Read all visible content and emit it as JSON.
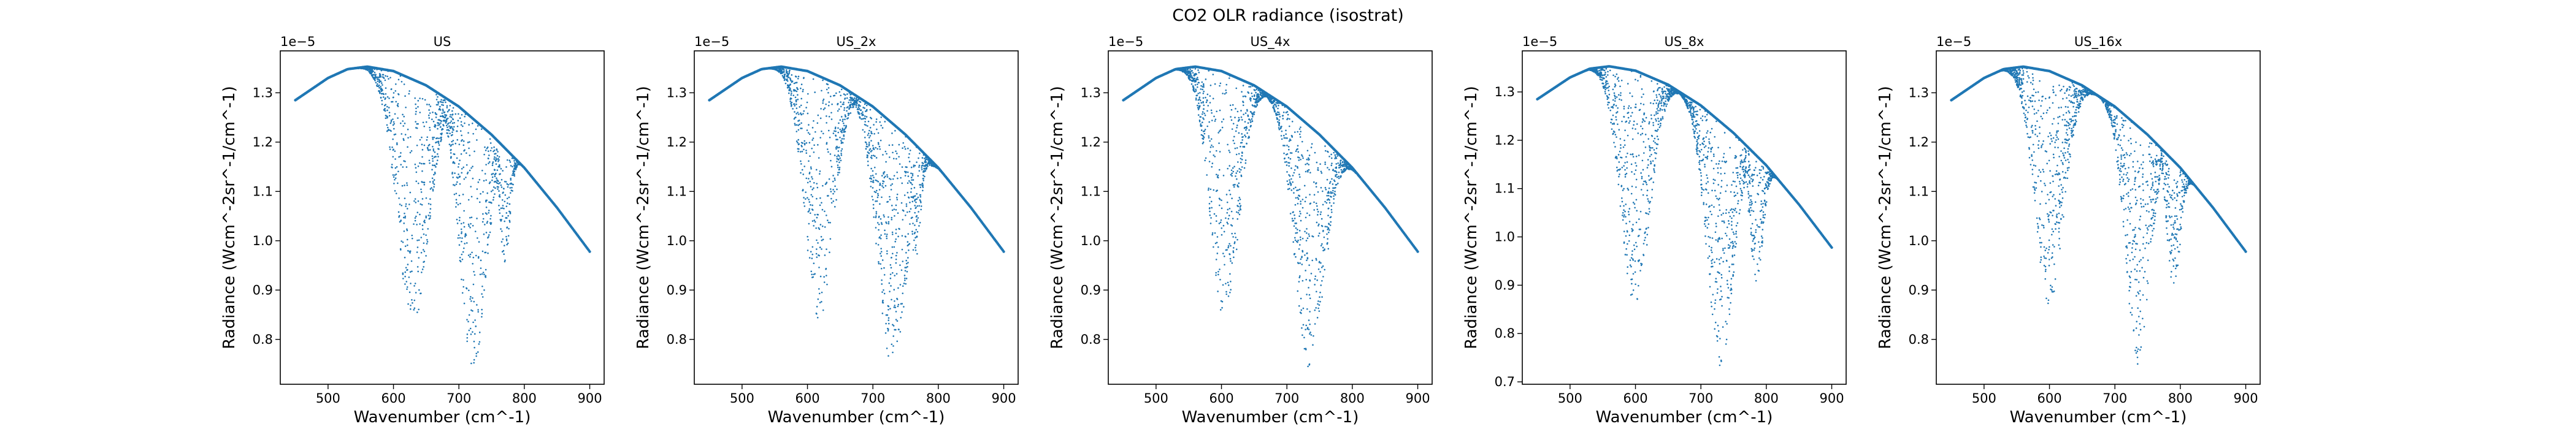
{
  "figure": {
    "title": "CO2 OLR radiance (isostrat)"
  },
  "colors": {
    "points": "#1f77b4",
    "axes": "#000000",
    "background": "#ffffff"
  },
  "chart_data": [
    {
      "type": "scatter",
      "title": "US",
      "xlabel": "Wavenumber (cm^-1)",
      "ylabel": "Radiance (Wcm^-2sr^-1/cm^-1)",
      "y_scale_label": "1e−5",
      "xlim": [
        427,
        922
      ],
      "ylim": [
        0.709,
        1.385
      ],
      "x_ticks": [
        500,
        600,
        700,
        800,
        900
      ],
      "y_ticks": [
        0.8,
        0.9,
        1.0,
        1.1,
        1.2,
        1.3
      ],
      "y_tick_labels": [
        "0.8",
        "0.9",
        "1.0",
        "1.1",
        "1.2",
        "1.3"
      ],
      "envelope": {
        "x": [
          450,
          500,
          530,
          560,
          600,
          650,
          700,
          750,
          800,
          850,
          900
        ],
        "y": [
          1.285,
          1.33,
          1.348,
          1.353,
          1.344,
          1.315,
          1.272,
          1.215,
          1.148,
          1.067,
          0.978
        ]
      },
      "bands": [
        {
          "center": 630,
          "width": 24,
          "depth": 0.83
        },
        {
          "center": 722,
          "width": 20,
          "depth": 0.74
        },
        {
          "center": 770,
          "width": 8,
          "depth": 0.95
        }
      ]
    },
    {
      "type": "scatter",
      "title": "US_2x",
      "xlabel": "Wavenumber (cm^-1)",
      "ylabel": "Radiance (Wcm^-2sr^-1/cm^-1)",
      "y_scale_label": "1e−5",
      "xlim": [
        427,
        922
      ],
      "ylim": [
        0.709,
        1.385
      ],
      "x_ticks": [
        500,
        600,
        700,
        800,
        900
      ],
      "y_ticks": [
        0.8,
        0.9,
        1.0,
        1.1,
        1.2,
        1.3
      ],
      "y_tick_labels": [
        "0.8",
        "0.9",
        "1.0",
        "1.1",
        "1.2",
        "1.3"
      ],
      "envelope": {
        "x": [
          450,
          500,
          530,
          560,
          600,
          650,
          700,
          750,
          800,
          850,
          900
        ],
        "y": [
          1.285,
          1.33,
          1.348,
          1.353,
          1.344,
          1.315,
          1.272,
          1.215,
          1.148,
          1.067,
          0.978
        ]
      },
      "bands": [
        {
          "center": 618,
          "width": 22,
          "depth": 0.84
        },
        {
          "center": 730,
          "width": 22,
          "depth": 0.74
        },
        {
          "center": 765,
          "width": 8,
          "depth": 0.96
        }
      ]
    },
    {
      "type": "scatter",
      "title": "US_4x",
      "xlabel": "Wavenumber (cm^-1)",
      "ylabel": "Radiance (Wcm^-2sr^-1/cm^-1)",
      "y_scale_label": "1e−5",
      "xlim": [
        427,
        922
      ],
      "ylim": [
        0.709,
        1.385
      ],
      "x_ticks": [
        500,
        600,
        700,
        800,
        900
      ],
      "y_ticks": [
        0.8,
        0.9,
        1.0,
        1.1,
        1.2,
        1.3
      ],
      "y_tick_labels": [
        "0.8",
        "0.9",
        "1.0",
        "1.1",
        "1.2",
        "1.3"
      ],
      "envelope": {
        "x": [
          450,
          500,
          530,
          560,
          600,
          650,
          700,
          750,
          800,
          850,
          900
        ],
        "y": [
          1.285,
          1.33,
          1.348,
          1.353,
          1.344,
          1.315,
          1.272,
          1.215,
          1.148,
          1.067,
          0.978
        ]
      },
      "bands": [
        {
          "center": 605,
          "width": 22,
          "depth": 0.84
        },
        {
          "center": 735,
          "width": 22,
          "depth": 0.74
        },
        {
          "center": 760,
          "width": 8,
          "depth": 0.96
        }
      ]
    },
    {
      "type": "scatter",
      "title": "US_8x",
      "xlabel": "Wavenumber (cm^-1)",
      "ylabel": "Radiance (Wcm^-2sr^-1/cm^-1)",
      "y_scale_label": "1e−5",
      "xlim": [
        427,
        922
      ],
      "ylim": [
        0.695,
        1.385
      ],
      "x_ticks": [
        500,
        600,
        700,
        800,
        900
      ],
      "y_ticks": [
        0.7,
        0.8,
        0.9,
        1.0,
        1.1,
        1.2,
        1.3
      ],
      "y_tick_labels": [
        "0.7",
        "0.8",
        "0.9",
        "1.0",
        "1.1",
        "1.2",
        "1.3"
      ],
      "envelope": {
        "x": [
          450,
          500,
          530,
          560,
          600,
          650,
          700,
          750,
          800,
          850,
          900
        ],
        "y": [
          1.285,
          1.33,
          1.348,
          1.353,
          1.344,
          1.315,
          1.272,
          1.215,
          1.148,
          1.067,
          0.978
        ]
      },
      "bands": [
        {
          "center": 600,
          "width": 22,
          "depth": 0.85
        },
        {
          "center": 730,
          "width": 20,
          "depth": 0.73
        },
        {
          "center": 785,
          "width": 10,
          "depth": 0.9
        }
      ]
    },
    {
      "type": "scatter",
      "title": "US_16x",
      "xlabel": "Wavenumber (cm^-1)",
      "ylabel": "Radiance (Wcm^-2sr^-1/cm^-1)",
      "y_scale_label": "1e−5",
      "xlim": [
        427,
        922
      ],
      "ylim": [
        0.709,
        1.385
      ],
      "x_ticks": [
        500,
        600,
        700,
        800,
        900
      ],
      "y_ticks": [
        0.8,
        0.9,
        1.0,
        1.1,
        1.2,
        1.3
      ],
      "y_tick_labels": [
        "0.8",
        "0.9",
        "1.0",
        "1.1",
        "1.2",
        "1.3"
      ],
      "envelope": {
        "x": [
          450,
          500,
          530,
          560,
          600,
          650,
          700,
          750,
          800,
          850,
          900
        ],
        "y": [
          1.285,
          1.33,
          1.348,
          1.353,
          1.344,
          1.315,
          1.272,
          1.215,
          1.148,
          1.067,
          0.978
        ]
      },
      "bands": [
        {
          "center": 600,
          "width": 22,
          "depth": 0.87
        },
        {
          "center": 735,
          "width": 18,
          "depth": 0.75
        },
        {
          "center": 790,
          "width": 10,
          "depth": 0.9
        }
      ]
    }
  ]
}
